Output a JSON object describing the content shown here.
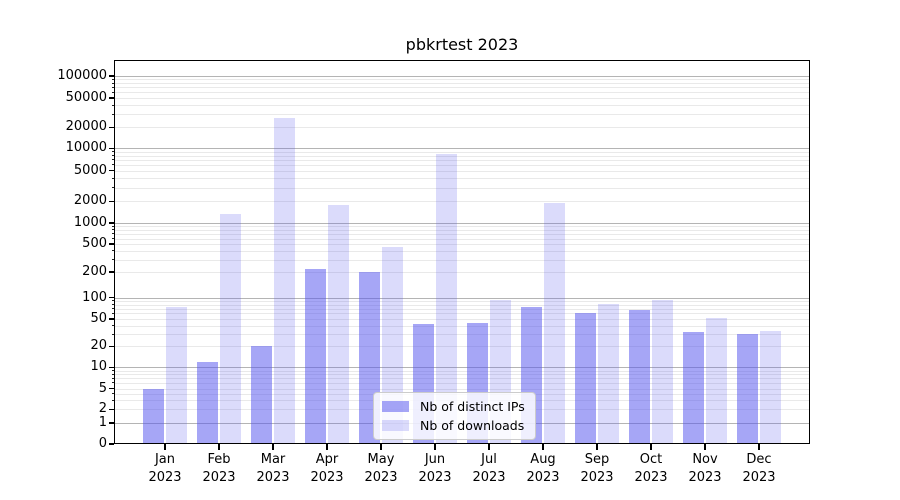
{
  "figure": {
    "title": "pbkrtest 2023",
    "background": "#ffffff",
    "accent_base_color": "#5454ee"
  },
  "chart_data": {
    "type": "bar",
    "title": "pbkrtest 2023",
    "x_type": "category",
    "categories": [
      {
        "month": "Jan",
        "year": "2023"
      },
      {
        "month": "Feb",
        "year": "2023"
      },
      {
        "month": "Mar",
        "year": "2023"
      },
      {
        "month": "Apr",
        "year": "2023"
      },
      {
        "month": "May",
        "year": "2023"
      },
      {
        "month": "Jun",
        "year": "2023"
      },
      {
        "month": "Jul",
        "year": "2023"
      },
      {
        "month": "Aug",
        "year": "2023"
      },
      {
        "month": "Sep",
        "year": "2023"
      },
      {
        "month": "Oct",
        "year": "2023"
      },
      {
        "month": "Nov",
        "year": "2023"
      },
      {
        "month": "Dec",
        "year": "2023"
      }
    ],
    "series": [
      {
        "name": "Nb of distinct IPs",
        "color": "rgba(84,84,238,0.52)",
        "values": [
          5,
          12,
          20,
          220,
          200,
          42,
          44,
          73,
          61,
          68,
          32,
          30
        ]
      },
      {
        "name": "Nb of downloads",
        "color": "rgba(84,84,238,0.21)",
        "values": [
          74,
          1350,
          27000,
          1800,
          460,
          8300,
          93,
          1900,
          81,
          94,
          52,
          34
        ]
      }
    ],
    "yaxis": {
      "scale": "symlog",
      "tick_values": [
        0,
        1,
        2,
        5,
        10,
        20,
        50,
        100,
        200,
        500,
        1000,
        2000,
        5000,
        10000,
        20000,
        50000,
        100000
      ],
      "range": [
        0,
        100000
      ]
    },
    "grid": {
      "enabled": true,
      "major_color": "#b4b4b4",
      "minor_color": "#e9e9e9"
    },
    "legend": {
      "position": "lower-center-inside",
      "background": "#ffffff",
      "border_color": "#cccccc"
    }
  }
}
